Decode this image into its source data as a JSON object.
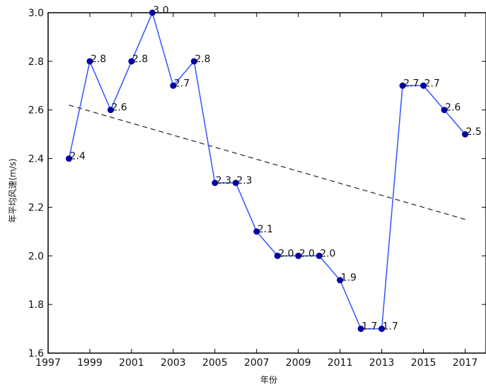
{
  "chart_data": {
    "type": "line",
    "title": "",
    "xlabel": "年份",
    "ylabel": "年平均风速(m/s)",
    "x": [
      1998,
      1999,
      2000,
      2001,
      2002,
      2003,
      2004,
      2005,
      2006,
      2007,
      2008,
      2009,
      2010,
      2011,
      2012,
      2013,
      2014,
      2015,
      2016,
      2017
    ],
    "series": [
      {
        "name": "",
        "values": [
          2.4,
          2.8,
          2.6,
          2.8,
          3.0,
          2.7,
          2.8,
          2.3,
          2.3,
          2.1,
          2.0,
          2.0,
          2.0,
          1.9,
          1.7,
          1.7,
          2.7,
          2.7,
          2.6,
          2.5
        ],
        "labels": [
          "2.4",
          "2.8",
          "2.6",
          "2.8",
          "3.0",
          "2.7",
          "2.8",
          "2.3",
          "2.3",
          "2.1",
          "2.0",
          "2.0",
          "2.0",
          "1.9",
          "1.7",
          "1.7",
          "2.7",
          "2.7",
          "2.6",
          "2.5"
        ],
        "color": "#3355ff",
        "marker_color": "#0000aa"
      }
    ],
    "trendline": {
      "x": [
        1998,
        2017
      ],
      "y": [
        2.62,
        2.15
      ],
      "style": "dashed",
      "color": "#333333"
    },
    "xlim": [
      1997,
      2018
    ],
    "ylim": [
      1.6,
      3.0
    ],
    "xticks": [
      1997,
      1999,
      2001,
      2003,
      2005,
      2007,
      2009,
      2011,
      2013,
      2015,
      2017
    ],
    "xtick_labels": [
      "1997",
      "1999",
      "2001",
      "2003",
      "2005",
      "2007",
      "2009",
      "2011",
      "2013",
      "2015",
      "2017"
    ],
    "yticks": [
      1.6,
      1.8,
      2.0,
      2.2,
      2.4,
      2.6,
      2.8,
      3.0
    ],
    "ytick_labels": [
      "1.6",
      "1.8",
      "2.0",
      "2.2",
      "2.4",
      "2.6",
      "2.8",
      "3.0"
    ],
    "grid": false,
    "legend": "none"
  }
}
